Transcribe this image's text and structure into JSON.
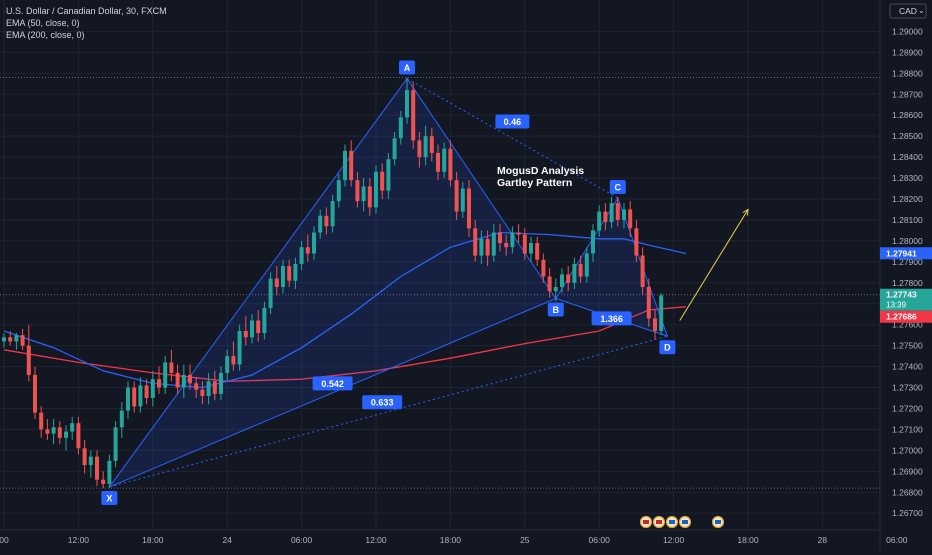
{
  "legend": {
    "symbol_line": "U.S. Dollar / Canadian Dollar, 30, FXCM",
    "ema50_line": "EMA (50, close, 0)",
    "ema200_line": "EMA (200, close, 0)"
  },
  "currency_label": "CAD",
  "currency_menu": "⌄",
  "annotation": {
    "line1": "MogusD Analysis",
    "line2": "Gartley Pattern"
  },
  "colors": {
    "background": "#131722",
    "grid": "#1f2433",
    "bull": "#26a69a",
    "bear": "#ef5350",
    "ema50": "#2962ff",
    "ema200": "#f23645",
    "pattern": "#2962ff",
    "arrow": "#e8d44d"
  },
  "chart_data": {
    "type": "candlestick",
    "symbol": "U.S. Dollar / Canadian Dollar",
    "interval": "30",
    "source": "FXCM",
    "y_range": [
      1.2662,
      1.2915
    ],
    "y_ticks": [
      "1.29000",
      "1.28900",
      "1.28800",
      "1.28700",
      "1.28600",
      "1.28500",
      "1.28400",
      "1.28300",
      "1.28200",
      "1.28100",
      "1.28000",
      "1.27900",
      "1.27800",
      "1.27700",
      "1.27600",
      "1.27500",
      "1.27400",
      "1.27300",
      "1.27200",
      "1.27100",
      "1.27000",
      "1.26900",
      "1.26800",
      "1.26700"
    ],
    "x_labels": [
      "00",
      "12:00",
      "18:00",
      "24",
      "06:00",
      "12:00",
      "18:00",
      "25",
      "06:00",
      "12:00",
      "18:00",
      "28",
      "06:00"
    ],
    "x_range_bars": [
      0,
      146
    ],
    "x_label_bars": [
      0,
      12,
      24,
      36,
      48,
      60,
      72,
      84,
      96,
      108,
      120,
      132,
      144
    ],
    "price_labels": [
      {
        "text": "1.27941",
        "value": 1.27941,
        "color": "#2962ff"
      },
      {
        "text": "1.27743",
        "value": 1.27743,
        "color": "#26a69a",
        "sub": "13:39"
      },
      {
        "text": "1.27686",
        "value": 1.27686,
        "color": "#f23645"
      }
    ],
    "dotted_levels": [
      1.2878,
      1.2682,
      1.27743
    ],
    "pattern_points": [
      {
        "label": "X",
        "bar": 17,
        "price": 1.26825
      },
      {
        "label": "A",
        "bar": 65,
        "price": 1.28775
      },
      {
        "label": "B",
        "bar": 89,
        "price": 1.27725
      },
      {
        "label": "C",
        "bar": 99,
        "price": 1.28205
      },
      {
        "label": "D",
        "bar": 107,
        "price": 1.27545
      }
    ],
    "ratios": [
      {
        "text": "0.46",
        "bar": 82,
        "price": 1.2857
      },
      {
        "text": "0.542",
        "bar": 53,
        "price": 1.2732
      },
      {
        "text": "0.633",
        "bar": 61,
        "price": 1.2723
      },
      {
        "text": "1.366",
        "bar": 98,
        "price": 1.2763
      }
    ],
    "projection": {
      "from": {
        "bar": 109,
        "price": 1.2762
      },
      "to": {
        "bar": 120,
        "price": 1.2815
      }
    },
    "ohlc": [
      [
        1.2752,
        1.2756,
        1.2749,
        1.2754
      ],
      [
        1.2754,
        1.2757,
        1.275,
        1.2752
      ],
      [
        1.2752,
        1.2756,
        1.2748,
        1.2755
      ],
      [
        1.2755,
        1.2758,
        1.2748,
        1.275
      ],
      [
        1.275,
        1.276,
        1.2733,
        1.2736
      ],
      [
        1.2736,
        1.274,
        1.2715,
        1.2718
      ],
      [
        1.2718,
        1.2721,
        1.2706,
        1.271
      ],
      [
        1.271,
        1.2715,
        1.2705,
        1.2708
      ],
      [
        1.2708,
        1.2715,
        1.2703,
        1.2711
      ],
      [
        1.2711,
        1.2714,
        1.2703,
        1.2706
      ],
      [
        1.2706,
        1.2712,
        1.27,
        1.2709
      ],
      [
        1.2709,
        1.2716,
        1.2705,
        1.2713
      ],
      [
        1.2713,
        1.2716,
        1.2698,
        1.2701
      ],
      [
        1.2701,
        1.2705,
        1.2689,
        1.2693
      ],
      [
        1.2693,
        1.27,
        1.2687,
        1.2697
      ],
      [
        1.2697,
        1.27,
        1.2683,
        1.2686
      ],
      [
        1.2686,
        1.269,
        1.2682,
        1.2684
      ],
      [
        1.2684,
        1.2698,
        1.2682,
        1.2695
      ],
      [
        1.2695,
        1.2714,
        1.2692,
        1.2711
      ],
      [
        1.2711,
        1.2723,
        1.2706,
        1.2719
      ],
      [
        1.2719,
        1.2733,
        1.2715,
        1.273
      ],
      [
        1.273,
        1.2733,
        1.2718,
        1.2721
      ],
      [
        1.2721,
        1.2735,
        1.2718,
        1.2731
      ],
      [
        1.2731,
        1.2734,
        1.2722,
        1.2725
      ],
      [
        1.2725,
        1.2738,
        1.2721,
        1.2734
      ],
      [
        1.2734,
        1.274,
        1.2727,
        1.273
      ],
      [
        1.273,
        1.2745,
        1.2727,
        1.2742
      ],
      [
        1.2742,
        1.2748,
        1.2733,
        1.2737
      ],
      [
        1.2737,
        1.2741,
        1.2727,
        1.273
      ],
      [
        1.273,
        1.2741,
        1.2725,
        1.2736
      ],
      [
        1.2736,
        1.2741,
        1.2729,
        1.2732
      ],
      [
        1.2732,
        1.2735,
        1.2725,
        1.2729
      ],
      [
        1.2729,
        1.2733,
        1.2722,
        1.2726
      ],
      [
        1.2726,
        1.2737,
        1.2722,
        1.2733
      ],
      [
        1.2733,
        1.2738,
        1.2724,
        1.2727
      ],
      [
        1.2727,
        1.274,
        1.2724,
        1.2737
      ],
      [
        1.2737,
        1.2748,
        1.2733,
        1.2745
      ],
      [
        1.2745,
        1.2752,
        1.2738,
        1.2741
      ],
      [
        1.2741,
        1.276,
        1.2738,
        1.2757
      ],
      [
        1.2757,
        1.2764,
        1.275,
        1.2754
      ],
      [
        1.2754,
        1.2765,
        1.2751,
        1.2762
      ],
      [
        1.2762,
        1.2767,
        1.2752,
        1.2756
      ],
      [
        1.2756,
        1.2771,
        1.2753,
        1.2768
      ],
      [
        1.2768,
        1.2785,
        1.2765,
        1.2782
      ],
      [
        1.2782,
        1.2788,
        1.2774,
        1.2778
      ],
      [
        1.2778,
        1.2791,
        1.2775,
        1.2788
      ],
      [
        1.2788,
        1.2791,
        1.2778,
        1.2781
      ],
      [
        1.2781,
        1.2792,
        1.2777,
        1.2789
      ],
      [
        1.2789,
        1.28,
        1.2786,
        1.2797
      ],
      [
        1.2797,
        1.2803,
        1.279,
        1.2794
      ],
      [
        1.2794,
        1.2807,
        1.2791,
        1.2804
      ],
      [
        1.2804,
        1.2815,
        1.2801,
        1.2812
      ],
      [
        1.2812,
        1.2816,
        1.2803,
        1.2807
      ],
      [
        1.2807,
        1.2822,
        1.2804,
        1.2819
      ],
      [
        1.2819,
        1.2832,
        1.2816,
        1.2829
      ],
      [
        1.2829,
        1.2846,
        1.2826,
        1.2843
      ],
      [
        1.2843,
        1.2848,
        1.2826,
        1.2829
      ],
      [
        1.2829,
        1.2833,
        1.2816,
        1.2819
      ],
      [
        1.2819,
        1.283,
        1.2814,
        1.2826
      ],
      [
        1.2826,
        1.283,
        1.2812,
        1.2816
      ],
      [
        1.2816,
        1.2836,
        1.2813,
        1.2833
      ],
      [
        1.2833,
        1.2837,
        1.282,
        1.2824
      ],
      [
        1.2824,
        1.2842,
        1.282,
        1.2839
      ],
      [
        1.2839,
        1.2852,
        1.2836,
        1.2849
      ],
      [
        1.2849,
        1.2862,
        1.2846,
        1.2859
      ],
      [
        1.2859,
        1.2878,
        1.2856,
        1.2872
      ],
      [
        1.2872,
        1.2876,
        1.2844,
        1.2848
      ],
      [
        1.2848,
        1.2852,
        1.2835,
        1.284
      ],
      [
        1.284,
        1.2855,
        1.2836,
        1.285
      ],
      [
        1.285,
        1.2854,
        1.2838,
        1.2842
      ],
      [
        1.2842,
        1.2846,
        1.2829,
        1.2833
      ],
      [
        1.2833,
        1.2847,
        1.283,
        1.2844
      ],
      [
        1.2844,
        1.2848,
        1.2826,
        1.2829
      ],
      [
        1.2829,
        1.2833,
        1.281,
        1.2814
      ],
      [
        1.2814,
        1.2828,
        1.2811,
        1.2825
      ],
      [
        1.2825,
        1.2829,
        1.2802,
        1.2806
      ],
      [
        1.2806,
        1.281,
        1.279,
        1.2793
      ],
      [
        1.2793,
        1.2805,
        1.2789,
        1.2801
      ],
      [
        1.2801,
        1.2805,
        1.2788,
        1.2793
      ],
      [
        1.2793,
        1.2808,
        1.279,
        1.2804
      ],
      [
        1.2804,
        1.2808,
        1.2795,
        1.2799
      ],
      [
        1.2799,
        1.2803,
        1.2793,
        1.2797
      ],
      [
        1.2797,
        1.2807,
        1.2794,
        1.2804
      ],
      [
        1.2804,
        1.2808,
        1.2799,
        1.2803
      ],
      [
        1.2803,
        1.2806,
        1.2791,
        1.2794
      ],
      [
        1.2794,
        1.2802,
        1.279,
        1.2799
      ],
      [
        1.2799,
        1.2802,
        1.2788,
        1.2791
      ],
      [
        1.2791,
        1.2794,
        1.278,
        1.2783
      ],
      [
        1.2783,
        1.2787,
        1.2773,
        1.2776
      ],
      [
        1.2776,
        1.2782,
        1.2771,
        1.2778
      ],
      [
        1.2778,
        1.2787,
        1.2775,
        1.2784
      ],
      [
        1.2784,
        1.2788,
        1.2776,
        1.278
      ],
      [
        1.278,
        1.2792,
        1.2777,
        1.2789
      ],
      [
        1.2789,
        1.2793,
        1.278,
        1.2783
      ],
      [
        1.2783,
        1.2797,
        1.278,
        1.2794
      ],
      [
        1.2794,
        1.2808,
        1.279,
        1.2805
      ],
      [
        1.2805,
        1.2817,
        1.2802,
        1.2814
      ],
      [
        1.2814,
        1.2818,
        1.2805,
        1.2809
      ],
      [
        1.2809,
        1.2821,
        1.2806,
        1.2818
      ],
      [
        1.2818,
        1.2821,
        1.2807,
        1.281
      ],
      [
        1.281,
        1.2818,
        1.2806,
        1.2815
      ],
      [
        1.2815,
        1.2819,
        1.2802,
        1.2806
      ],
      [
        1.2806,
        1.281,
        1.279,
        1.2793
      ],
      [
        1.2793,
        1.2797,
        1.2774,
        1.2778
      ],
      [
        1.2778,
        1.2782,
        1.2759,
        1.2763
      ],
      [
        1.2763,
        1.2767,
        1.2753,
        1.2757
      ],
      [
        1.2757,
        1.2775,
        1.2755,
        1.2774
      ]
    ],
    "ema50": [
      [
        0,
        1.2757
      ],
      [
        8,
        1.2749
      ],
      [
        16,
        1.2738
      ],
      [
        24,
        1.2732
      ],
      [
        32,
        1.273
      ],
      [
        40,
        1.2736
      ],
      [
        48,
        1.2749
      ],
      [
        56,
        1.2765
      ],
      [
        64,
        1.2783
      ],
      [
        72,
        1.2797
      ],
      [
        80,
        1.2804
      ],
      [
        88,
        1.2803
      ],
      [
        96,
        1.2801
      ],
      [
        100,
        1.2801
      ],
      [
        104,
        1.2798
      ],
      [
        110,
        1.2794
      ]
    ],
    "ema200": [
      [
        0,
        1.2748
      ],
      [
        12,
        1.2742
      ],
      [
        24,
        1.2737
      ],
      [
        36,
        1.2733
      ],
      [
        48,
        1.2734
      ],
      [
        60,
        1.2738
      ],
      [
        72,
        1.2744
      ],
      [
        84,
        1.2751
      ],
      [
        96,
        1.2757
      ],
      [
        104,
        1.2767
      ],
      [
        110,
        1.27686
      ]
    ]
  }
}
